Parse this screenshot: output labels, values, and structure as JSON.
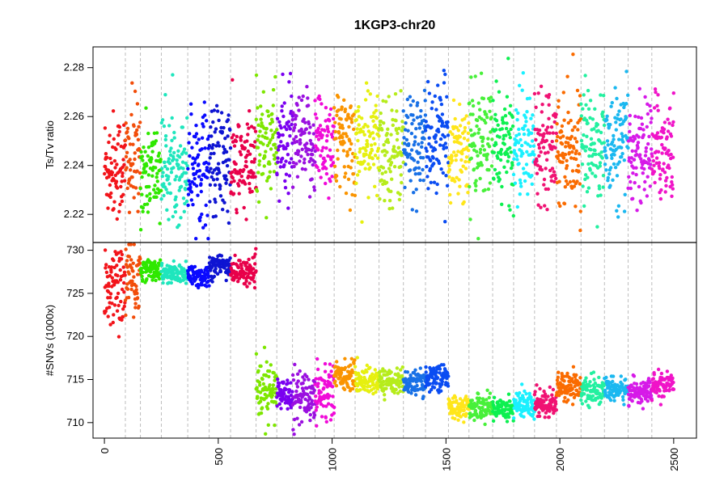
{
  "chart_data": {
    "type": "scatter",
    "title": "1KGP3-chr20",
    "xlabel": "",
    "xlim": [
      -50,
      2600
    ],
    "xticks": [
      0,
      500,
      1000,
      1500,
      2000,
      2500
    ],
    "xtick_labels": [
      "0",
      "500",
      "1000",
      "1500",
      "2000",
      "2500"
    ],
    "segment_boundaries": [
      92,
      158,
      250,
      366,
      460,
      554,
      666,
      757,
      826,
      925,
      1009,
      1101,
      1206,
      1313,
      1410,
      1511,
      1601,
      1705,
      1797,
      1889,
      1985,
      2093,
      2196,
      2300,
      2404
    ],
    "palette": [
      "#f2141a",
      "#f24d0a",
      "#2fe800",
      "#1fe6bd",
      "#0a0aff",
      "#0e14d2",
      "#e8004a",
      "#7ee600",
      "#7a00f0",
      "#9a10e0",
      "#f00bd8",
      "#fa9400",
      "#e6f010",
      "#b6ec1c",
      "#1870e6",
      "#0a4cf2",
      "#ffe61a",
      "#48f03a",
      "#0df050",
      "#1af0ff",
      "#f01273",
      "#fa6b00",
      "#23f0a0",
      "#1bb8f0",
      "#d61ae8",
      "#f014c8"
    ],
    "panels": [
      {
        "ylabel": "Ts/Tv ratio",
        "ylim": [
          2.2085,
          2.2885
        ],
        "yticks": [
          2.22,
          2.24,
          2.26,
          2.28
        ],
        "ytick_labels": [
          "2.22",
          "2.24",
          "2.26",
          "2.28"
        ],
        "segment_means": [
          2.24,
          2.242,
          2.238,
          2.239,
          2.241,
          2.241,
          2.239,
          2.25,
          2.248,
          2.248,
          2.25,
          2.249,
          2.248,
          2.247,
          2.248,
          2.25,
          2.247,
          2.249,
          2.248,
          2.248,
          2.251,
          2.248,
          2.248,
          2.247,
          2.246,
          2.247
        ],
        "segment_sds": [
          0.011,
          0.012,
          0.01,
          0.01,
          0.012,
          0.012,
          0.011,
          0.011,
          0.011,
          0.01,
          0.011,
          0.011,
          0.011,
          0.011,
          0.011,
          0.011,
          0.011,
          0.011,
          0.011,
          0.011,
          0.011,
          0.011,
          0.011,
          0.011,
          0.011,
          0.011
        ]
      },
      {
        "ylabel": "#SNVs (1000x)",
        "ylim": [
          708.2,
          730.9
        ],
        "yticks": [
          710,
          715,
          720,
          725,
          730
        ],
        "ytick_labels": [
          "710",
          "715",
          "720",
          "725",
          "730"
        ],
        "segment_means": [
          725.8,
          726.5,
          727.8,
          727.2,
          727.0,
          728.2,
          727.5,
          713.5,
          713.4,
          713.0,
          713.7,
          715.5,
          714.9,
          714.8,
          714.6,
          715.3,
          711.7,
          711.8,
          711.7,
          712.0,
          712.3,
          714.3,
          713.6,
          713.8,
          713.6,
          714.2
        ],
        "segment_sds": [
          2.2,
          2.8,
          0.6,
          0.6,
          0.7,
          0.7,
          0.7,
          1.8,
          0.9,
          1.5,
          1.8,
          0.8,
          0.8,
          0.7,
          0.7,
          0.8,
          0.7,
          0.7,
          0.7,
          0.9,
          0.8,
          0.8,
          0.7,
          0.7,
          0.7,
          0.7
        ]
      }
    ]
  }
}
